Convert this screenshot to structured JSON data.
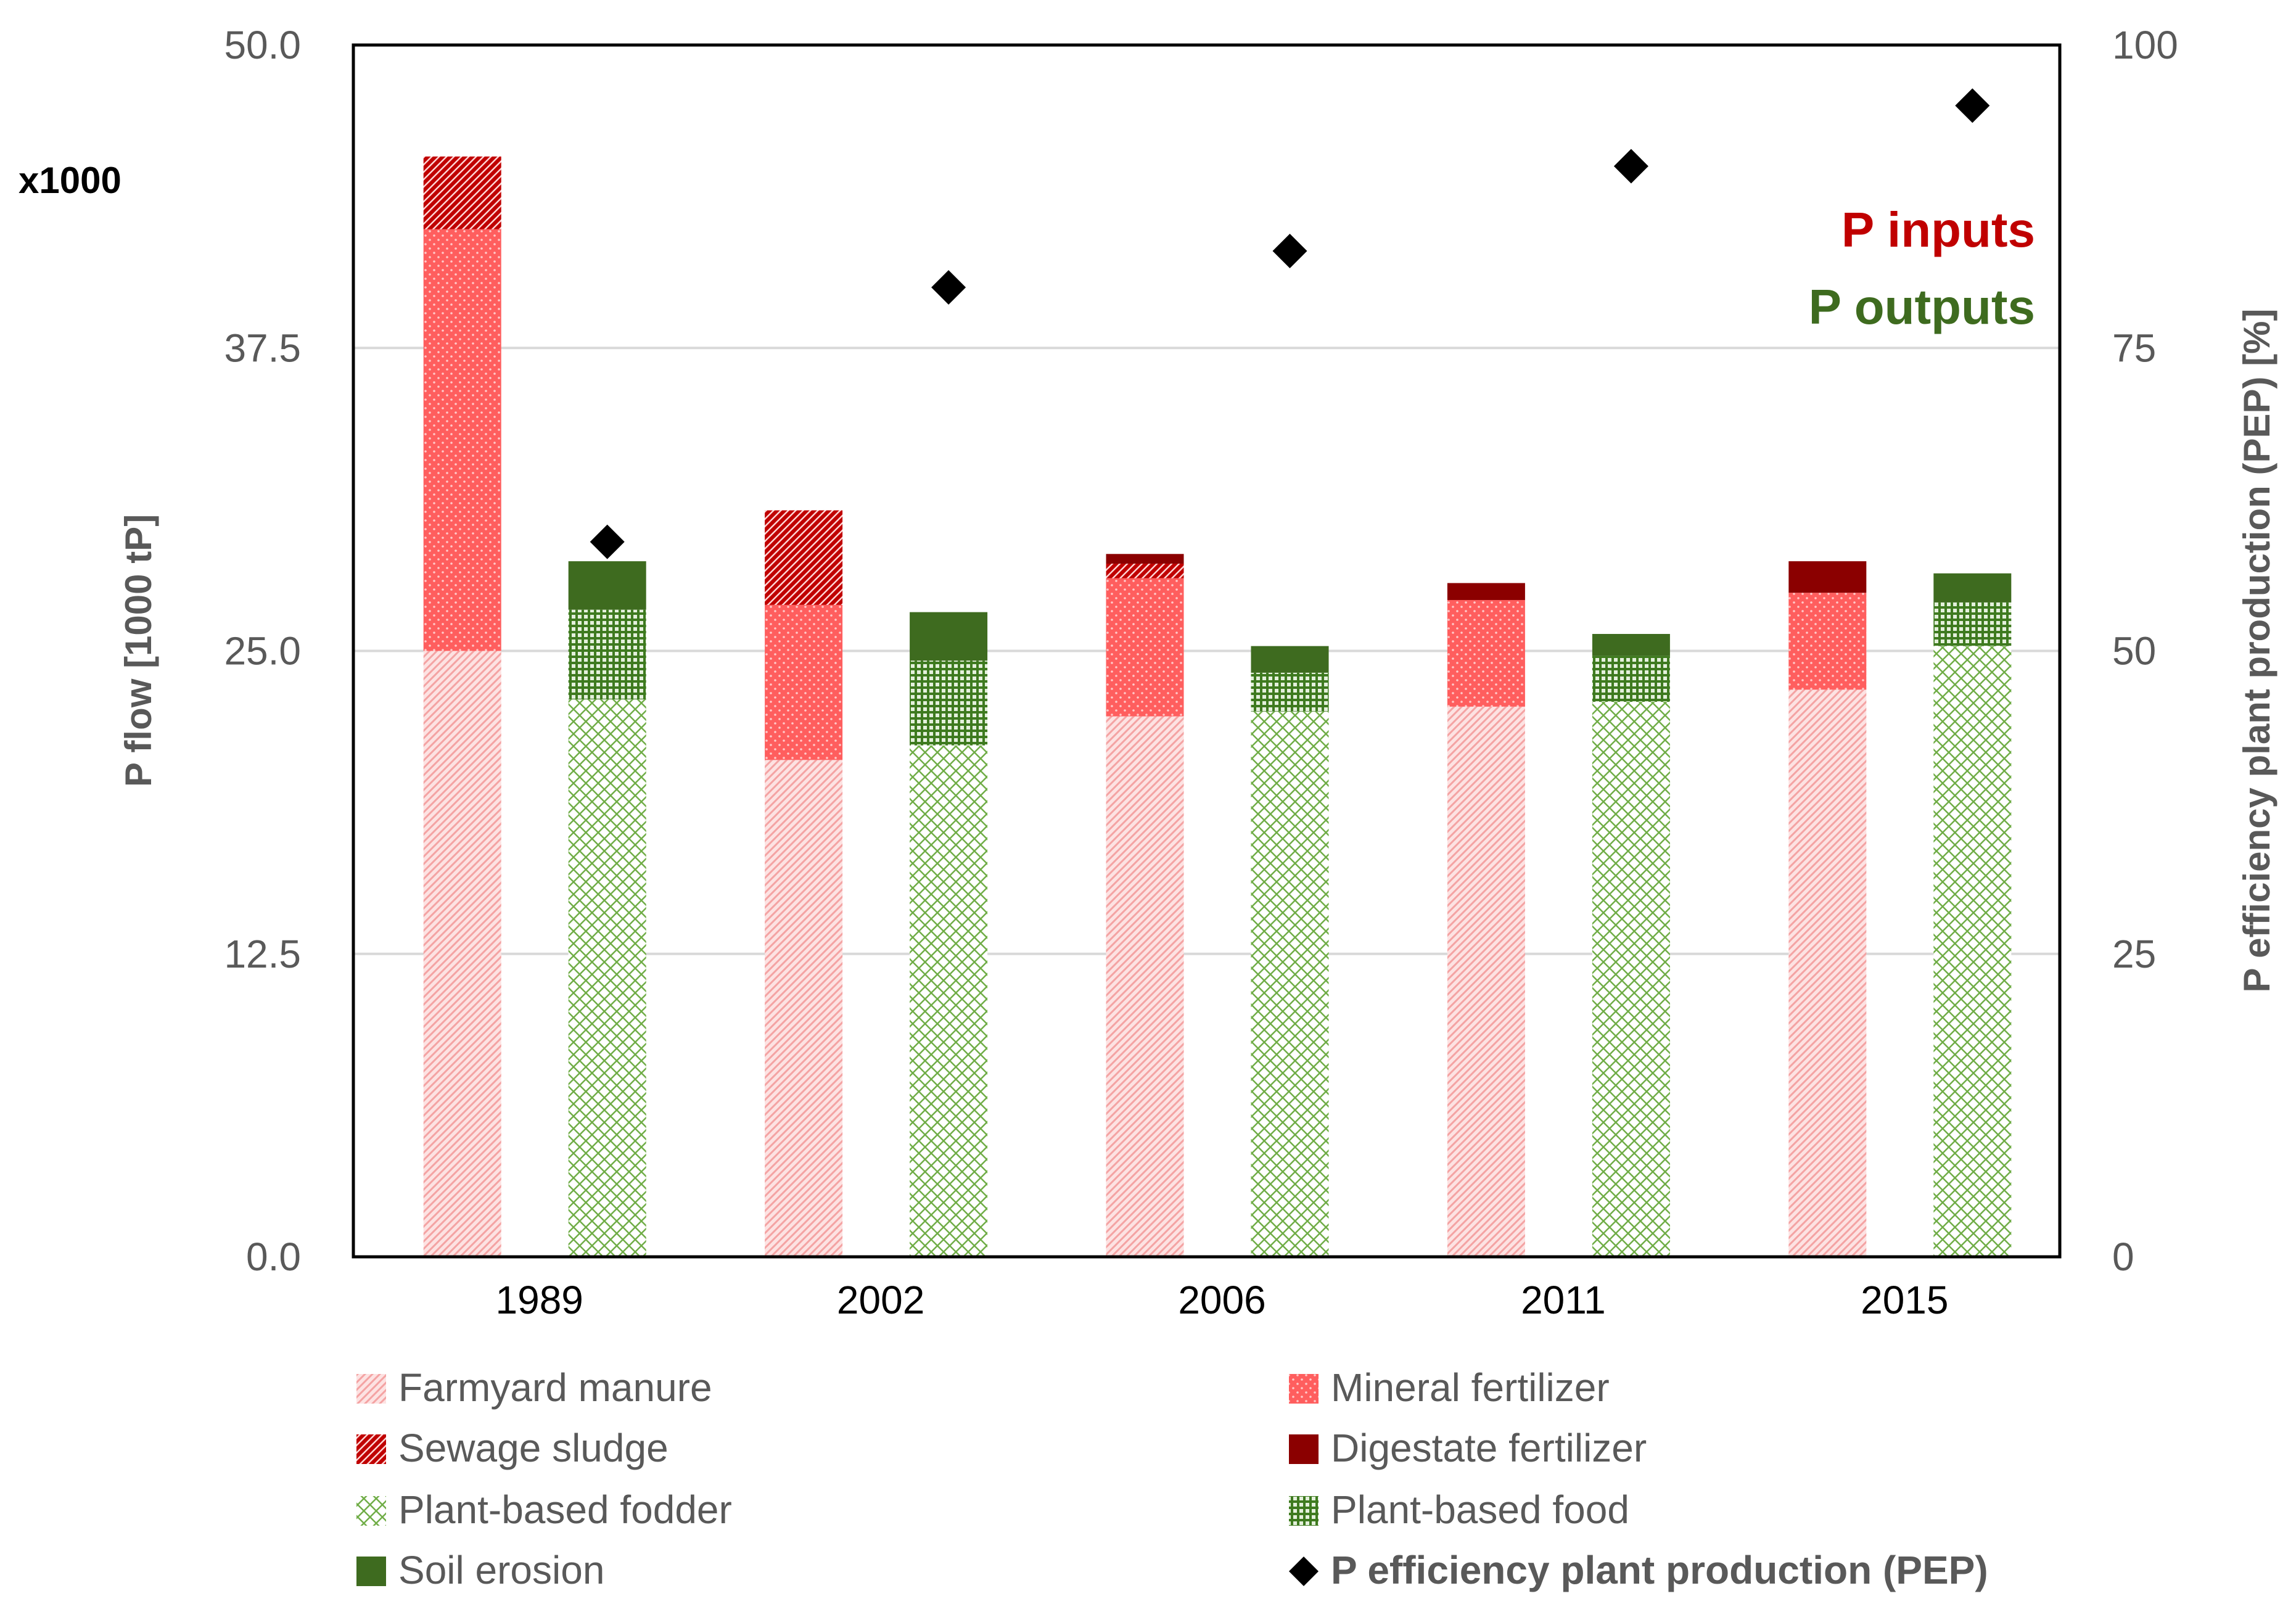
{
  "chart_data": {
    "type": "bar",
    "stacked": true,
    "categories": [
      "1989",
      "2002",
      "2006",
      "2011",
      "2015"
    ],
    "multiplier_label": "x1000",
    "ylabel": "P flow [1000 tP]",
    "y2label": "P efficiency plant production (PEP) [%]",
    "ylim": [
      0,
      50
    ],
    "y2lim": [
      0,
      100
    ],
    "yticks": [
      "0.0",
      "12.5",
      "25.0",
      "37.5",
      "50.0"
    ],
    "y2ticks": [
      "0",
      "25",
      "50",
      "75",
      "100"
    ],
    "grid": true,
    "annotations": {
      "inputs": {
        "text": "P inputs",
        "color": "#c00000"
      },
      "outputs": {
        "text": "P outputs",
        "color": "#3e6b1f"
      }
    },
    "inputs_series": [
      {
        "name": "Farmyard manure",
        "values": [
          25.0,
          20.5,
          22.3,
          22.7,
          23.4
        ],
        "color": "#f4a3a3",
        "pattern": "diag-light"
      },
      {
        "name": "Mineral fertilizer",
        "values": [
          17.4,
          6.4,
          5.7,
          4.4,
          4.0
        ],
        "color": "#ff5757",
        "pattern": "dots"
      },
      {
        "name": "Sewage sludge",
        "values": [
          3.0,
          3.9,
          0.6,
          0.0,
          0.0
        ],
        "color": "#c00000",
        "pattern": "diag-dense"
      },
      {
        "name": "Digestate fertilizer",
        "values": [
          0.0,
          0.0,
          0.4,
          0.7,
          1.3
        ],
        "color": "#8b0000",
        "pattern": "solid"
      }
    ],
    "outputs_series": [
      {
        "name": "Plant-based fodder",
        "values": [
          23.0,
          21.1,
          22.5,
          22.9,
          25.2
        ],
        "color": "#70ad47",
        "pattern": "crosshatch"
      },
      {
        "name": "Plant-based food",
        "values": [
          3.7,
          3.5,
          1.6,
          1.9,
          1.8
        ],
        "color": "#4f8a2e",
        "pattern": "grid"
      },
      {
        "name": "Soil erosion",
        "values": [
          2.0,
          2.0,
          1.1,
          0.9,
          1.2
        ],
        "color": "#3e6b1f",
        "pattern": "solid"
      }
    ],
    "pep_series": {
      "name": "P efficiency plant production (PEP)",
      "values": [
        59,
        80,
        83,
        90,
        95
      ],
      "axis": "right"
    },
    "legend": {
      "items": [
        "Farmyard manure",
        "Mineral fertilizer",
        "Sewage sludge",
        "Digestate fertilizer",
        "Plant-based fodder",
        "Plant-based food",
        "Soil erosion",
        "P efficiency plant production (PEP)"
      ],
      "placement": "bottom"
    }
  }
}
